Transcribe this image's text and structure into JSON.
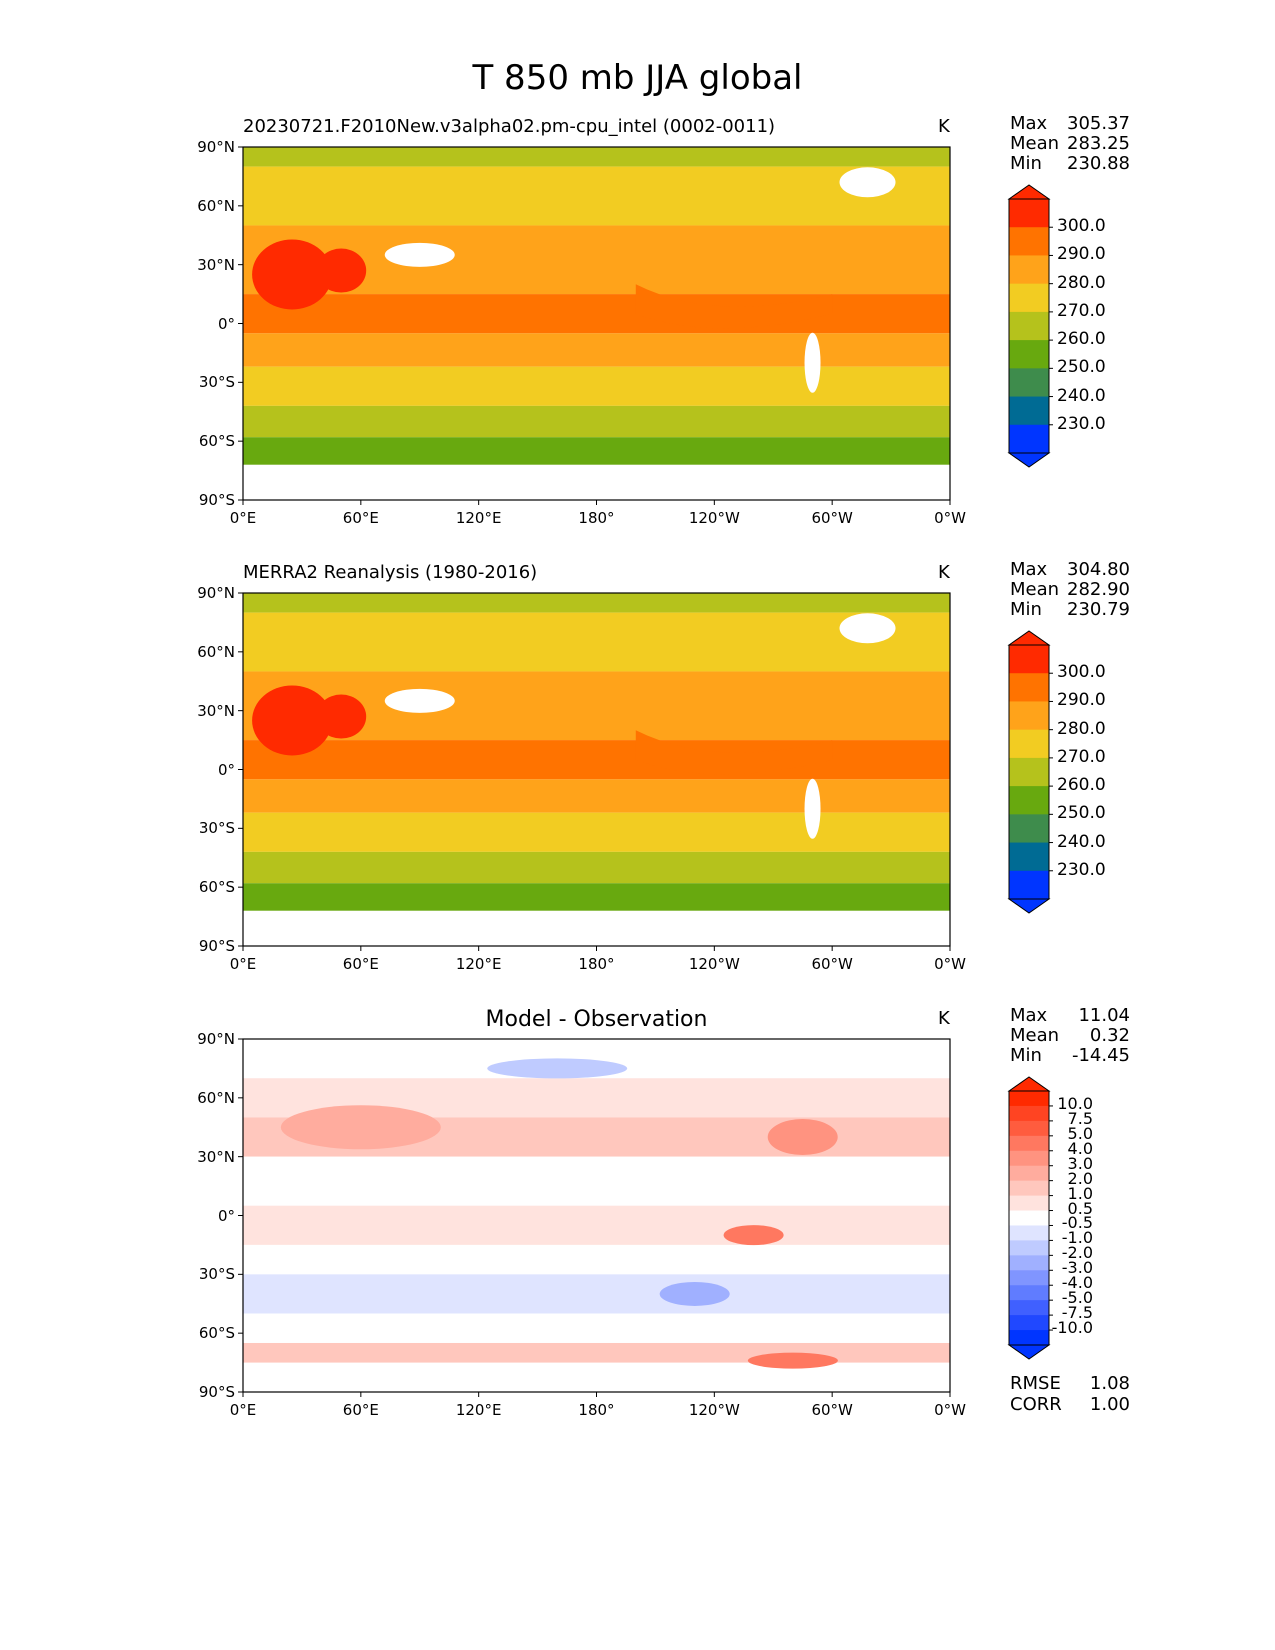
{
  "title": "T 850 mb JJA global",
  "chart_data": [
    {
      "type": "heatmap",
      "title": "20230721.F2010New.v3alpha02.pm-cpu_intel (0002-0011)",
      "units": "K",
      "stats": {
        "max_label": "Max",
        "max": "305.37",
        "mean_label": "Mean",
        "mean": "283.25",
        "min_label": "Min",
        "min": "230.88"
      },
      "xticks": [
        "0°E",
        "60°E",
        "120°E",
        "180°",
        "120°W",
        "60°W",
        "0°W"
      ],
      "yticks": [
        "90°N",
        "60°N",
        "30°N",
        "0°",
        "30°S",
        "60°S",
        "90°S"
      ],
      "levels": [
        "300.0",
        "290.0",
        "280.0",
        "270.0",
        "260.0",
        "250.0",
        "240.0",
        "230.0"
      ],
      "colors": [
        "#ff2a00",
        "#ff7300",
        "#ffa31a",
        "#f2cc22",
        "#b5c21c",
        "#68a90f",
        "#3e8c4c",
        "#006b94",
        "#0035ff"
      ]
    },
    {
      "type": "heatmap",
      "title": "MERRA2 Reanalysis (1980-2016)",
      "units": "K",
      "stats": {
        "max_label": "Max",
        "max": "304.80",
        "mean_label": "Mean",
        "mean": "282.90",
        "min_label": "Min",
        "min": "230.79"
      },
      "xticks": [
        "0°E",
        "60°E",
        "120°E",
        "180°",
        "120°W",
        "60°W",
        "0°W"
      ],
      "yticks": [
        "90°N",
        "60°N",
        "30°N",
        "0°",
        "30°S",
        "60°S",
        "90°S"
      ],
      "levels": [
        "300.0",
        "290.0",
        "280.0",
        "270.0",
        "260.0",
        "250.0",
        "240.0",
        "230.0"
      ],
      "colors": [
        "#ff2a00",
        "#ff7300",
        "#ffa31a",
        "#f2cc22",
        "#b5c21c",
        "#68a90f",
        "#3e8c4c",
        "#006b94",
        "#0035ff"
      ]
    },
    {
      "type": "heatmap",
      "title": "Model - Observation",
      "units": "K",
      "stats": {
        "max_label": "Max",
        "max": "11.04",
        "mean_label": "Mean",
        "mean": "0.32",
        "min_label": "Min",
        "min": "-14.45"
      },
      "extra": {
        "rmse_label": "RMSE",
        "rmse": "1.08",
        "corr_label": "CORR",
        "corr": "1.00"
      },
      "xticks": [
        "0°E",
        "60°E",
        "120°E",
        "180°",
        "120°W",
        "60°W",
        "0°W"
      ],
      "yticks": [
        "90°N",
        "60°N",
        "30°N",
        "0°",
        "30°S",
        "60°S",
        "90°S"
      ],
      "levels": [
        "10.0",
        "7.5",
        "5.0",
        "4.0",
        "3.0",
        "2.0",
        "1.0",
        "0.5",
        "-0.5",
        "-1.0",
        "-2.0",
        "-3.0",
        "-4.0",
        "-5.0",
        "-7.5",
        "-10.0"
      ],
      "colors": [
        "#ff2a00",
        "#ff4422",
        "#ff5c3e",
        "#ff7860",
        "#ff9380",
        "#ffac9e",
        "#ffc7bd",
        "#ffe3de",
        "#ffffff",
        "#dfe4ff",
        "#bfcbff",
        "#a0b0ff",
        "#8095ff",
        "#607cff",
        "#4060ff",
        "#2048ff",
        "#0035ff"
      ]
    }
  ]
}
